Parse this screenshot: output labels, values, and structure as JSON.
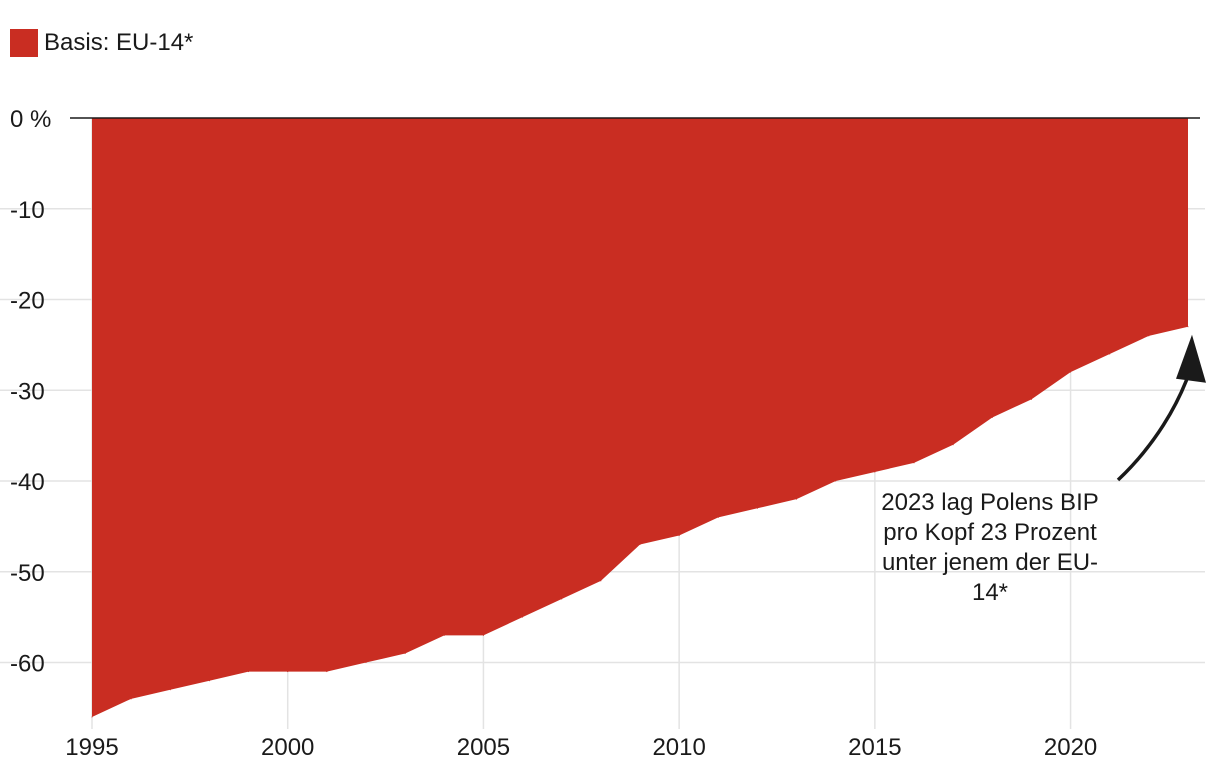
{
  "legend": {
    "label": "Basis: EU-14*",
    "color": "#c92d22"
  },
  "chart_data": {
    "type": "area",
    "series": [
      {
        "name": "Basis: EU-14*",
        "color": "#c92d22",
        "x": [
          1995,
          1996,
          1997,
          1998,
          1999,
          2000,
          2001,
          2002,
          2003,
          2004,
          2005,
          2006,
          2007,
          2008,
          2009,
          2010,
          2011,
          2012,
          2013,
          2014,
          2015,
          2016,
          2017,
          2018,
          2019,
          2020,
          2021,
          2022,
          2023
        ],
        "values": [
          -66,
          -64,
          -63,
          -62,
          -61,
          -61,
          -61,
          -60,
          -59,
          -57,
          -57,
          -55,
          -53,
          -51,
          -47,
          -46,
          -44,
          -43,
          -42,
          -40,
          -39,
          -38,
          -36,
          -33,
          -31,
          -28,
          -26,
          -24,
          -23
        ]
      }
    ],
    "xlim": [
      1995,
      2023
    ],
    "ylim": [
      -66,
      0
    ],
    "x_ticks": [
      "1995",
      "2000",
      "2005",
      "2010",
      "2015",
      "2020"
    ],
    "y_ticks": [
      "0 %",
      "-10",
      "-20",
      "-30",
      "-40",
      "-50",
      "-60"
    ],
    "grid": true,
    "legend_position": "top-left",
    "annotation": {
      "lines": [
        "2023 lag Polens BIP",
        "pro Kopf 23 Prozent",
        "unter jenem der EU-",
        "14*"
      ],
      "points_to_x": 2023,
      "points_to_y": -23
    }
  }
}
